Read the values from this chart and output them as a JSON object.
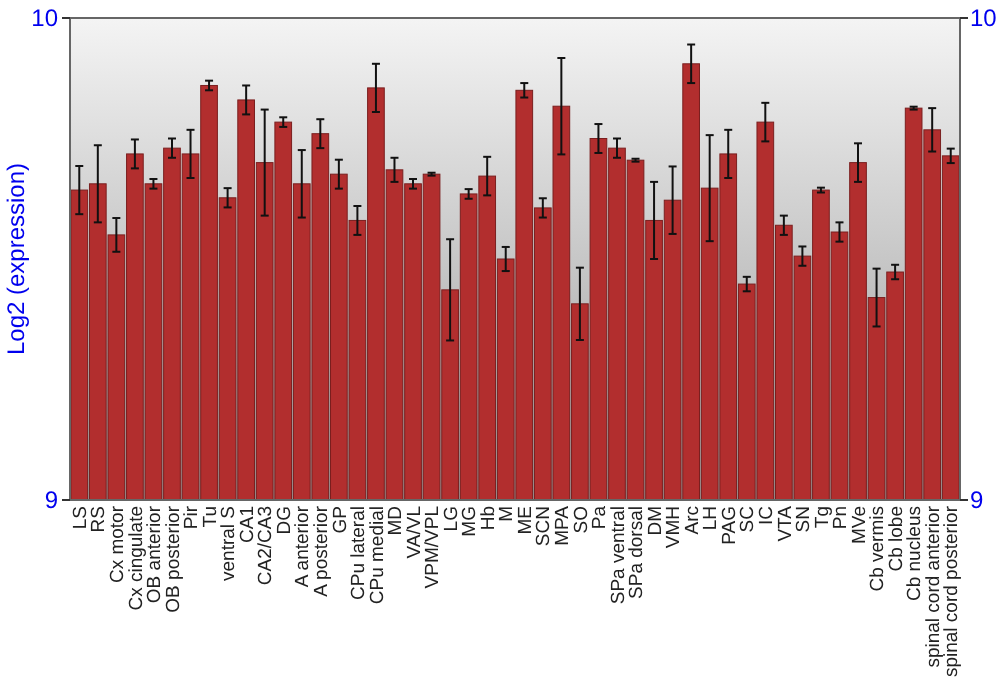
{
  "chart_data": {
    "type": "bar",
    "ylabel": "Log2 (expression)",
    "categories": [
      "LS",
      "RS",
      "Cx motor",
      "Cx cingulate",
      "OB anterior",
      "OB posterior",
      "Pir",
      "Tu",
      "ventral S",
      "CA1",
      "CA2/CA3",
      "DG",
      "A anterior",
      "A posterior",
      "GP",
      "CPu lateral",
      "CPu medial",
      "MD",
      "VA/VL",
      "VPM/VPL",
      "LG",
      "MG",
      "Hb",
      "M",
      "ME",
      "SCN",
      "MPA",
      "SO",
      "Pa",
      "SPa ventral",
      "SPa dorsal",
      "DM",
      "VMH",
      "Arc",
      "LH",
      "PAG",
      "SC",
      "IC",
      "VTA",
      "SN",
      "Tg",
      "Pn",
      "MVe",
      "Cb vermis",
      "Cb lobe",
      "Cb nucleus",
      "spinal cord anterior",
      "spinal cord posterior"
    ],
    "series": [
      {
        "color": "#b22e2e",
        "values": [
          9.643,
          9.656,
          9.55,
          9.718,
          9.656,
          9.73,
          9.718,
          9.86,
          9.627,
          9.83,
          9.7,
          9.784,
          9.656,
          9.76,
          9.676,
          9.58,
          9.855,
          9.685,
          9.656,
          9.676,
          9.436,
          9.635,
          9.672,
          9.5,
          9.85,
          9.606,
          9.817,
          9.407,
          9.75,
          9.73,
          9.705,
          9.58,
          9.622,
          9.905,
          9.647,
          9.718,
          9.448,
          9.784,
          9.57,
          9.506,
          9.643,
          9.556,
          9.7,
          9.42,
          9.473,
          9.813,
          9.768,
          9.714
        ],
        "errors": [
          0.05,
          0.08,
          0.035,
          0.03,
          0.01,
          0.02,
          0.05,
          0.01,
          0.02,
          0.03,
          0.11,
          0.01,
          0.07,
          0.03,
          0.03,
          0.03,
          0.05,
          0.025,
          0.01,
          0.003,
          0.105,
          0.01,
          0.04,
          0.025,
          0.015,
          0.02,
          0.1,
          0.075,
          0.03,
          0.02,
          0.003,
          0.08,
          0.07,
          0.04,
          0.11,
          0.05,
          0.015,
          0.04,
          0.02,
          0.02,
          0.005,
          0.02,
          0.04,
          0.06,
          0.015,
          0.003,
          0.045,
          0.015
        ]
      }
    ],
    "ylim": [
      9,
      10
    ],
    "yticks": [
      9,
      10
    ],
    "y2lim": [
      9,
      10
    ],
    "y2ticks": [
      9,
      10
    ]
  }
}
